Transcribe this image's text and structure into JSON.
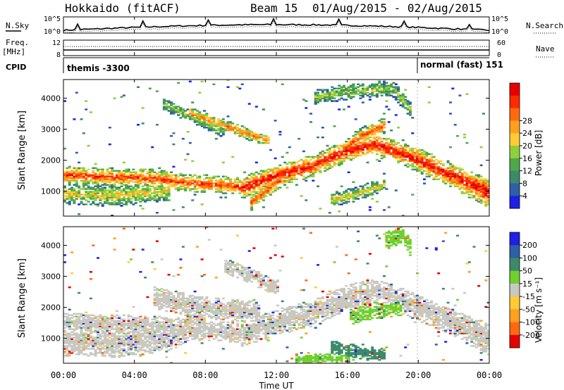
{
  "header": {
    "station": "Hokkaido (fitACF)",
    "beam": "Beam 15",
    "dates": "01/Aug/2015 - 02/Aug/2015"
  },
  "noise_panel": {
    "left_label": "N.Sky",
    "right_label": "N.Search",
    "left_ticks": [
      "10^5",
      "10^0"
    ],
    "right_ticks": [
      "10^5",
      "10^0"
    ]
  },
  "freq_panel": {
    "left_label_1": "Freq.",
    "left_label_2": "[MHz]",
    "right_label": "Nave",
    "left_ticks": [
      "12",
      "8"
    ],
    "right_ticks": [
      "60",
      "0"
    ]
  },
  "cpid_panel": {
    "label": "CPID",
    "mode1": "themis -3300",
    "mode2": "normal (fast) 151"
  },
  "chart_data": [
    {
      "type": "heatmap",
      "name": "power",
      "ylabel": "Slant Range [km]",
      "ylim": [
        200,
        4600
      ],
      "yticks": [
        "1000",
        "2000",
        "3000",
        "4000"
      ],
      "xlim_hours": [
        0,
        24
      ],
      "colorbar": {
        "label": "Power [dB]",
        "ticks": [
          "4",
          "8",
          "12",
          "16",
          "20",
          "24",
          "28"
        ],
        "colors": [
          "#1f1fe6",
          "#2e5fa8",
          "#3c8a6a",
          "#4fa84a",
          "#8fd03a",
          "#ffcc33",
          "#ffa020",
          "#ff6a10",
          "#ff2a00",
          "#e60000"
        ]
      },
      "features": [
        {
          "kind": "band",
          "t": [
            0,
            5,
            7,
            9,
            10.5
          ],
          "r": [
            1500,
            1400,
            1250,
            1200,
            1100
          ],
          "w": 180,
          "level": 0.85
        },
        {
          "kind": "band",
          "t": [
            10,
            12,
            14,
            16,
            17.5,
            19,
            21,
            24
          ],
          "r": [
            1100,
            1500,
            1800,
            2300,
            2500,
            2200,
            1700,
            1000
          ],
          "w": 220,
          "level": 0.95
        },
        {
          "kind": "band",
          "t": [
            10.5,
            12,
            13.5,
            15,
            16.5,
            18
          ],
          "r": [
            600,
            1300,
            1750,
            1950,
            2700,
            3100
          ],
          "w": 160,
          "level": 0.8
        },
        {
          "kind": "band",
          "t": [
            7,
            9,
            10.5,
            11.5
          ],
          "r": [
            3500,
            3100,
            2800,
            2600
          ],
          "w": 120,
          "level": 0.75
        },
        {
          "kind": "band",
          "t": [
            15,
            16.5,
            18
          ],
          "r": [
            700,
            900,
            1200
          ],
          "w": 140,
          "level": 0.55
        },
        {
          "kind": "band",
          "t": [
            19.5,
            21,
            22.5,
            24
          ],
          "r": [
            2100,
            1700,
            1300,
            800
          ],
          "w": 260,
          "level": 0.9
        },
        {
          "kind": "band",
          "t": [
            0,
            3,
            6
          ],
          "r": [
            900,
            850,
            1050
          ],
          "w": 220,
          "level": 0.55
        },
        {
          "kind": "band",
          "t": [
            14,
            16,
            18.5,
            19.5
          ],
          "r": [
            4000,
            4200,
            4300,
            3600
          ],
          "w": 160,
          "level": 0.45
        },
        {
          "kind": "band",
          "t": [
            5.5,
            7.5,
            9
          ],
          "r": [
            3800,
            3300,
            2900
          ],
          "w": 120,
          "level": 0.45
        }
      ]
    },
    {
      "type": "heatmap",
      "name": "velocity",
      "ylabel": "Slant Range [km]",
      "ylim": [
        200,
        4600
      ],
      "yticks": [
        "1000",
        "2000",
        "3000",
        "4000"
      ],
      "xlabel": "Time UT",
      "xticks": [
        "00:00",
        "04:00",
        "08:00",
        "12:00",
        "16:00",
        "20:00",
        "00:00"
      ],
      "xlim_hours": [
        0,
        24
      ],
      "colorbar": {
        "label": "Velocity [m s⁻¹]",
        "ticks": [
          "200",
          "100",
          "50",
          "15",
          "-15",
          "-50",
          "-100",
          "-200"
        ],
        "colors": [
          "#1f1fe6",
          "#2e5fa8",
          "#3c8a6a",
          "#6fd030",
          "#c8c8c0",
          "#ffcc33",
          "#ffa020",
          "#ff6a10",
          "#e60000"
        ]
      },
      "features": [
        {
          "kind": "band",
          "t": [
            0,
            5,
            7,
            9,
            10.5
          ],
          "r": [
            1500,
            1400,
            1250,
            1200,
            1100
          ],
          "w": 200,
          "color": "#c8c8c0"
        },
        {
          "kind": "band",
          "t": [
            10,
            12,
            14,
            16,
            17.5,
            19,
            21,
            24
          ],
          "r": [
            1100,
            1500,
            1800,
            2300,
            2500,
            2200,
            1700,
            1000
          ],
          "w": 260,
          "color": "#c8c8c0"
        },
        {
          "kind": "band",
          "t": [
            0,
            3,
            6,
            8
          ],
          "r": [
            900,
            850,
            1050,
            1700
          ],
          "w": 300,
          "color": "#c8c8c0"
        },
        {
          "kind": "band",
          "t": [
            5,
            7.5,
            9.5,
            11
          ],
          "r": [
            2300,
            2000,
            1900,
            1800
          ],
          "w": 220,
          "color": "#c8c8c0"
        },
        {
          "kind": "band",
          "t": [
            15,
            16.5,
            18
          ],
          "r": [
            700,
            550,
            450
          ],
          "w": 140,
          "color": "#3c8a6a"
        },
        {
          "kind": "band",
          "t": [
            16,
            17.5,
            19
          ],
          "r": [
            1700,
            1900,
            2000
          ],
          "w": 180,
          "color": "#6fd030"
        },
        {
          "kind": "band",
          "t": [
            18,
            19,
            19.5
          ],
          "r": [
            4100,
            4300,
            3900
          ],
          "w": 180,
          "color": "#6fd030"
        },
        {
          "kind": "band",
          "t": [
            9,
            10.5,
            12
          ],
          "r": [
            3300,
            3000,
            2600
          ],
          "w": 160,
          "color": "#c8c8c0"
        },
        {
          "kind": "band",
          "t": [
            13,
            15,
            16
          ],
          "r": [
            300,
            350,
            300
          ],
          "w": 90,
          "color": "#6fd030"
        },
        {
          "kind": "band",
          "t": [
            19.5,
            21,
            22.5,
            24
          ],
          "r": [
            2100,
            1700,
            1300,
            800
          ],
          "w": 260,
          "color": "#c8c8c0"
        }
      ]
    }
  ]
}
